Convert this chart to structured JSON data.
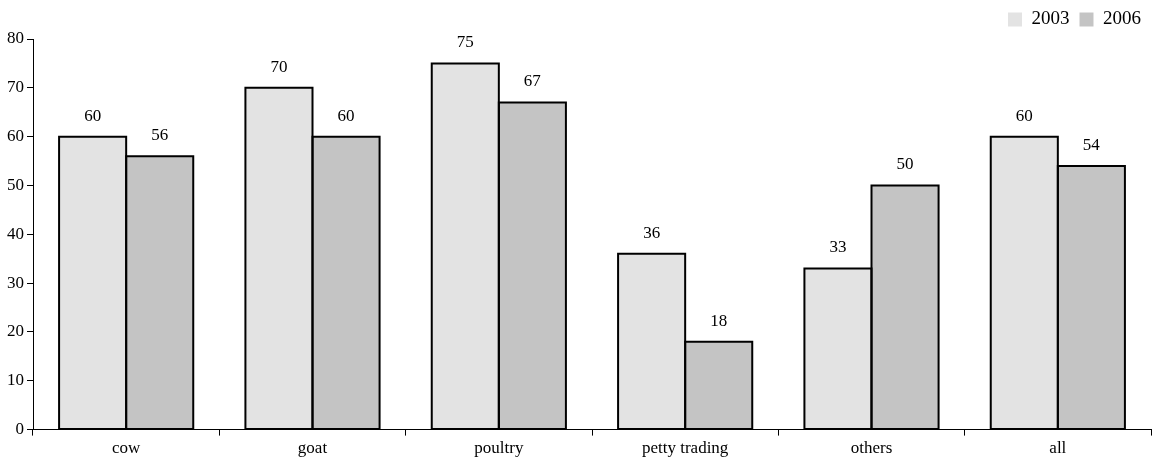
{
  "chart_data": {
    "type": "bar",
    "categories": [
      "cow",
      "goat",
      "poultry",
      "petty trading",
      "others",
      "all"
    ],
    "series": [
      {
        "name": "2003",
        "color": "#e3e3e3",
        "values": [
          60,
          70,
          75,
          36,
          33,
          60
        ]
      },
      {
        "name": "2006",
        "color": "#c4c4c4",
        "values": [
          56,
          60,
          67,
          18,
          50,
          54
        ]
      }
    ],
    "ylim": [
      0,
      80
    ],
    "yticks": [
      0,
      10,
      20,
      30,
      40,
      50,
      60,
      70,
      80
    ],
    "grid": false,
    "legend": "top right",
    "data_labels": true
  }
}
